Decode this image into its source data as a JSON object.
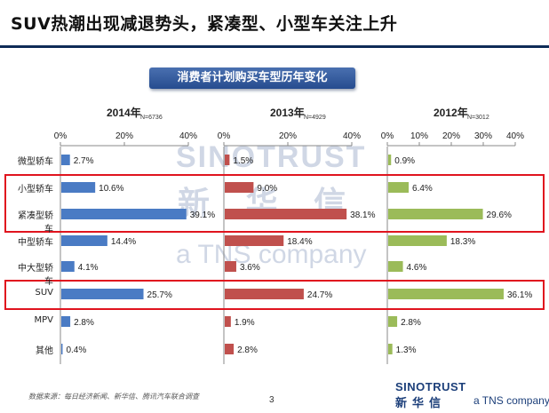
{
  "page_title": "SUV热潮出现减退势头，紧凑型、小型车关注上升",
  "chart_title": "消费者计划购买车型历年变化",
  "footer_source": "数据来源：每日经济新闻、新华信、腾讯汽车联合调查",
  "page_number": "3",
  "logo": {
    "brand": "SINOTRUST",
    "zh": "新华信",
    "tagline": "a TNS company"
  },
  "watermark": {
    "brand": "SINOTRUST",
    "zh": "新 华 信",
    "tagline": "a TNS company"
  },
  "colors": {
    "2014": "#4a7bc4",
    "2013": "#c0504d",
    "2012": "#9bbb59",
    "highlight": "#e0141e",
    "banner": "#2f58a0"
  },
  "chart_data": {
    "type": "bar",
    "orientation": "horizontal",
    "title": "消费者计划购买车型历年变化",
    "categories": [
      "微型轿车",
      "小型轿车",
      "紧凑型轿车",
      "中型轿车",
      "中大型轿车",
      "SUV",
      "MPV",
      "其他"
    ],
    "panels": [
      {
        "year": "2014年",
        "n": "N=6736",
        "xlim": [
          0,
          40
        ],
        "ticks": [
          "0%",
          "20%",
          "40%"
        ],
        "values": [
          2.7,
          10.6,
          39.1,
          14.4,
          4.1,
          25.7,
          2.8,
          0.4
        ],
        "labels": [
          "2.7%",
          "10.6%",
          "39.1%",
          "14.4%",
          "4.1%",
          "25.7%",
          "2.8%",
          "0.4%"
        ]
      },
      {
        "year": "2013年",
        "n": "N=4929",
        "xlim": [
          0,
          40
        ],
        "ticks": [
          "0%",
          "20%",
          "40%"
        ],
        "values": [
          1.5,
          9.0,
          38.1,
          18.4,
          3.6,
          24.7,
          1.9,
          2.8
        ],
        "labels": [
          "1.5%",
          "9.0%",
          "38.1%",
          "18.4%",
          "3.6%",
          "24.7%",
          "1.9%",
          "2.8%"
        ]
      },
      {
        "year": "2012年",
        "n": "N=3012",
        "xlim": [
          0,
          40
        ],
        "ticks": [
          "0%",
          "10%",
          "20%",
          "30%",
          "40%"
        ],
        "values": [
          0.9,
          6.4,
          29.6,
          18.3,
          4.6,
          36.1,
          2.8,
          1.3
        ],
        "labels": [
          "0.9%",
          "6.4%",
          "29.6%",
          "18.3%",
          "4.6%",
          "36.1%",
          "2.8%",
          "1.3%"
        ]
      }
    ],
    "highlighted_groups": [
      [
        "小型轿车",
        "紧凑型轿车"
      ],
      [
        "SUV"
      ]
    ],
    "grid": false,
    "legend": "none"
  }
}
